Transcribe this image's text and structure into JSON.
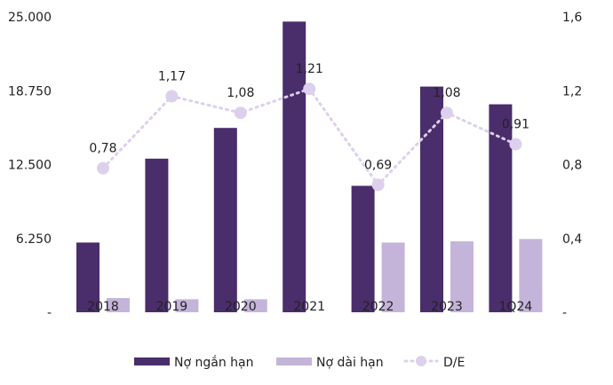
{
  "chart_data": {
    "type": "bar",
    "categories": [
      "2018",
      "2019",
      "2020",
      "2021",
      "2022",
      "2023",
      "1Q24"
    ],
    "series": [
      {
        "name": "Nợ ngắn hạn",
        "axis": "left",
        "type": "bar",
        "color": "#4a2d6b",
        "values": [
          5900,
          13000,
          15600,
          24600,
          10700,
          19100,
          17600
        ]
      },
      {
        "name": "Nợ dài hạn",
        "axis": "left",
        "type": "bar",
        "color": "#c5b4da",
        "values": [
          1200,
          1100,
          1100,
          0,
          5900,
          6000,
          6200
        ]
      },
      {
        "name": "D/E",
        "axis": "right",
        "type": "line",
        "color": "#dcd0ec",
        "values": [
          0.78,
          1.17,
          1.08,
          1.21,
          0.69,
          1.08,
          0.91
        ],
        "labels": [
          "0,78",
          "1,17",
          "1,08",
          "1,21",
          "0,69",
          "1,08",
          "0,91"
        ]
      }
    ],
    "y_left": {
      "ylim": [
        0,
        25000
      ],
      "ticks": [
        0,
        6250,
        12500,
        18750,
        25000
      ],
      "tick_labels": [
        "-",
        "6.250",
        "12.500",
        "18.750",
        "25.000"
      ]
    },
    "y_right": {
      "ylim": [
        0,
        1.6
      ],
      "ticks": [
        0,
        0.4,
        0.8,
        1.2,
        1.6
      ],
      "tick_labels": [
        "-",
        "0,4",
        "0,8",
        "1,2",
        "1,6"
      ]
    },
    "legend_position": "bottom",
    "grid": false
  }
}
